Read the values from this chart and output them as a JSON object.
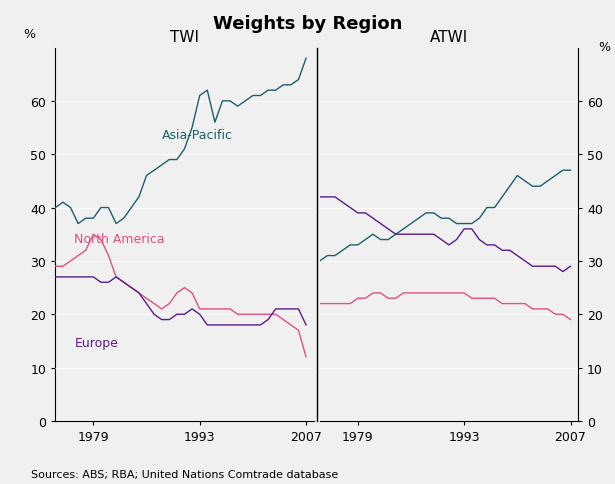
{
  "title": "Weights by Region",
  "source_text": "Sources: ABS; RBA; United Nations Comtrade database",
  "twi_label": "TWI",
  "atwi_label": "ATWI",
  "ylabel_left": "%",
  "ylabel_right": "%",
  "ylim": [
    0,
    70
  ],
  "yticks": [
    0,
    10,
    20,
    30,
    40,
    50,
    60
  ],
  "background_color": "#f0f0f0",
  "plot_bg_color": "#f0f0f0",
  "color_asia": "#1c5f6b",
  "color_north_america": "#e05080",
  "color_europe": "#5b1a8a",
  "twi_years": [
    1974,
    1975,
    1976,
    1977,
    1978,
    1979,
    1980,
    1981,
    1982,
    1983,
    1984,
    1985,
    1986,
    1987,
    1988,
    1989,
    1990,
    1991,
    1992,
    1993,
    1994,
    1995,
    1996,
    1997,
    1998,
    1999,
    2000,
    2001,
    2002,
    2003,
    2004,
    2005,
    2006,
    2007
  ],
  "twi_asia": [
    40,
    41,
    40,
    37,
    38,
    38,
    40,
    40,
    37,
    38,
    40,
    42,
    46,
    47,
    48,
    49,
    49,
    51,
    55,
    61,
    62,
    56,
    60,
    60,
    59,
    60,
    61,
    61,
    62,
    62,
    63,
    63,
    64,
    68
  ],
  "twi_north_america": [
    29,
    29,
    30,
    31,
    32,
    35,
    34,
    31,
    27,
    26,
    25,
    24,
    23,
    22,
    21,
    22,
    24,
    25,
    24,
    21,
    21,
    21,
    21,
    21,
    20,
    20,
    20,
    20,
    20,
    20,
    19,
    18,
    17,
    12
  ],
  "twi_europe": [
    27,
    27,
    27,
    27,
    27,
    27,
    26,
    26,
    27,
    26,
    25,
    24,
    22,
    20,
    19,
    19,
    20,
    20,
    21,
    20,
    18,
    18,
    18,
    18,
    18,
    18,
    18,
    18,
    19,
    21,
    21,
    21,
    21,
    18
  ],
  "atwi_years": [
    1974,
    1975,
    1976,
    1977,
    1978,
    1979,
    1980,
    1981,
    1982,
    1983,
    1984,
    1985,
    1986,
    1987,
    1988,
    1989,
    1990,
    1991,
    1992,
    1993,
    1994,
    1995,
    1996,
    1997,
    1998,
    1999,
    2000,
    2001,
    2002,
    2003,
    2004,
    2005,
    2006,
    2007
  ],
  "atwi_asia": [
    30,
    31,
    31,
    32,
    33,
    33,
    34,
    35,
    34,
    34,
    35,
    36,
    37,
    38,
    39,
    39,
    38,
    38,
    37,
    37,
    37,
    38,
    40,
    40,
    42,
    44,
    46,
    45,
    44,
    44,
    45,
    46,
    47,
    47
  ],
  "atwi_north_america": [
    22,
    22,
    22,
    22,
    22,
    23,
    23,
    24,
    24,
    23,
    23,
    24,
    24,
    24,
    24,
    24,
    24,
    24,
    24,
    24,
    23,
    23,
    23,
    23,
    22,
    22,
    22,
    22,
    21,
    21,
    21,
    20,
    20,
    19
  ],
  "atwi_europe": [
    42,
    42,
    42,
    41,
    40,
    39,
    39,
    38,
    37,
    36,
    35,
    35,
    35,
    35,
    35,
    35,
    34,
    33,
    34,
    36,
    36,
    34,
    33,
    33,
    32,
    32,
    31,
    30,
    29,
    29,
    29,
    29,
    28,
    29
  ],
  "label_asia": "Asia-Pacific",
  "label_north_america": "North America",
  "label_europe": "Europe",
  "twi_xlim": [
    1974,
    2008
  ],
  "atwi_xlim": [
    1974,
    2008
  ],
  "twi_xticks": [
    1979,
    1993,
    2007
  ],
  "atwi_xticks": [
    1979,
    1993,
    2007
  ]
}
